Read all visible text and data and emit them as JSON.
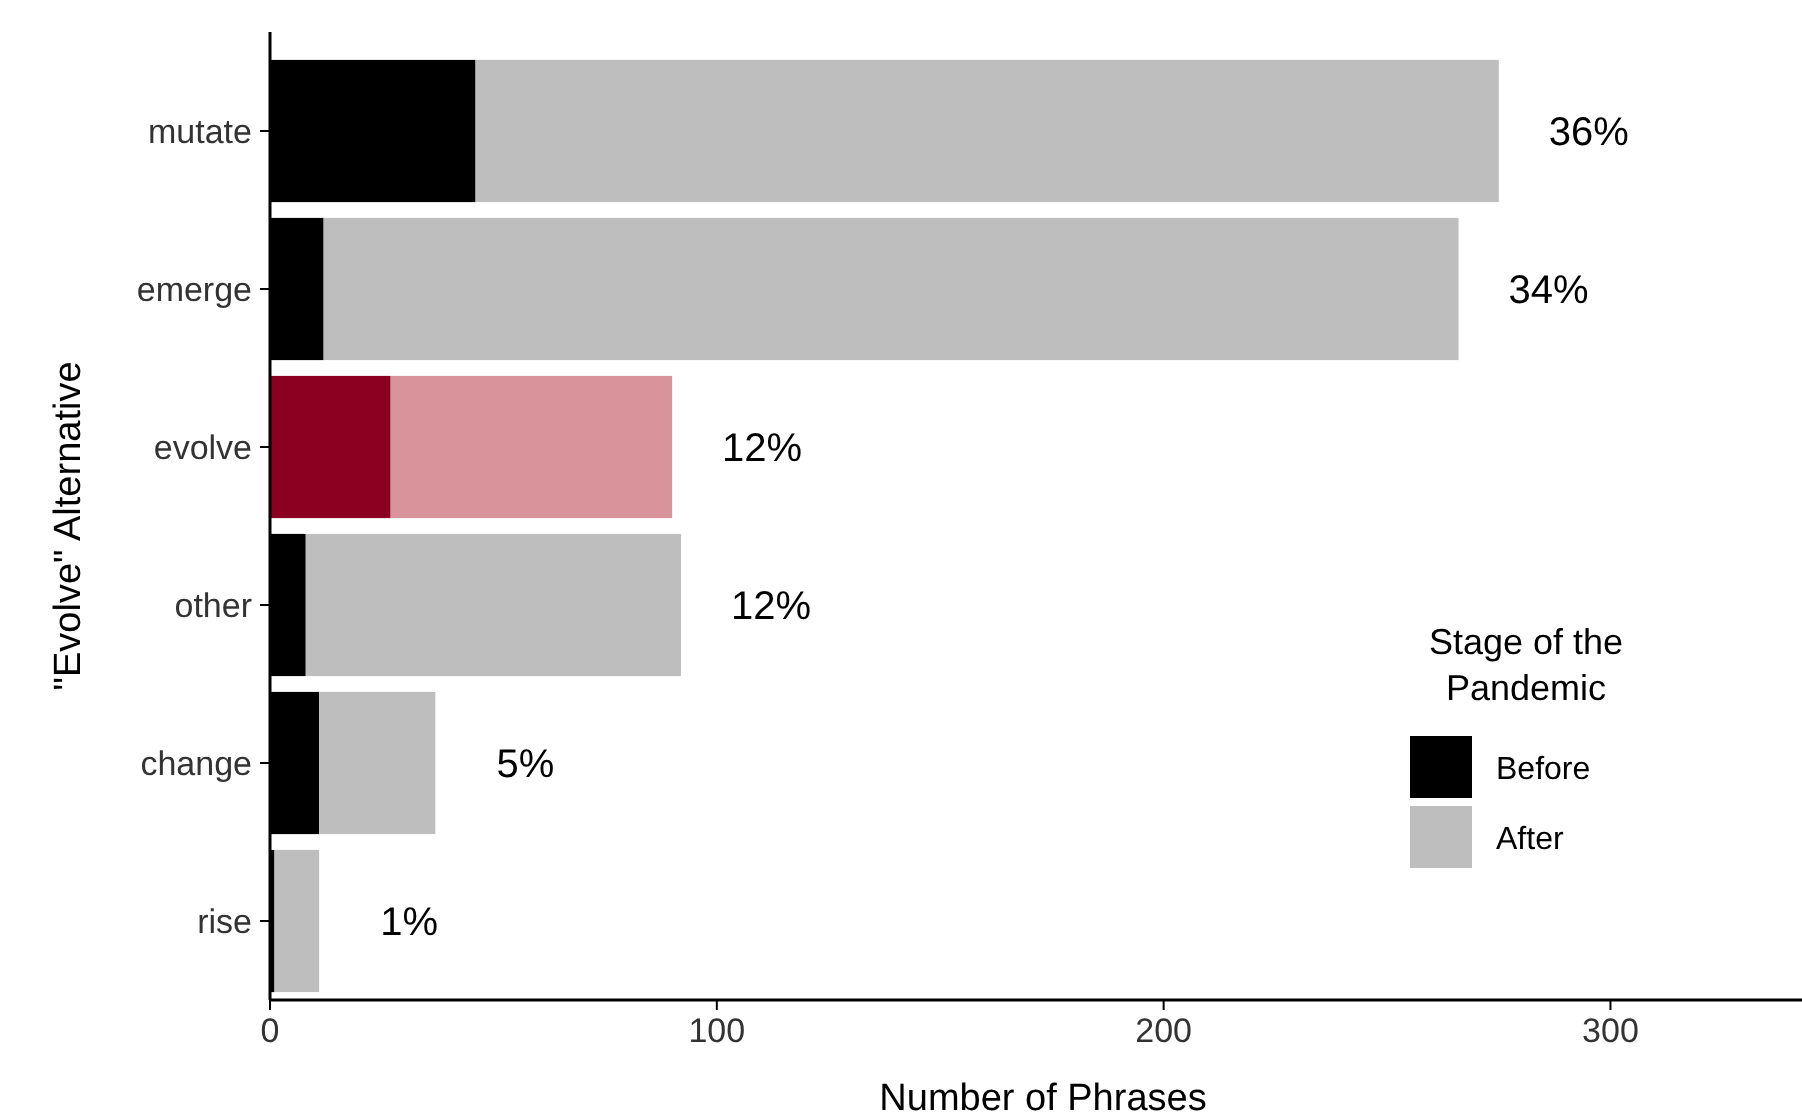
{
  "chart_data": {
    "type": "bar",
    "orientation": "horizontal",
    "stacked": true,
    "xlabel": "Number of Phrases",
    "ylabel": "\"Evolve\" Alternative",
    "legend_title": "Stage of the Pandemic",
    "categories": [
      "mutate",
      "emerge",
      "evolve",
      "other",
      "change",
      "rise"
    ],
    "series": [
      {
        "name": "Before",
        "color": "#000000",
        "colors": [
          "#000000",
          "#000000",
          "#8b0020",
          "#000000",
          "#000000",
          "#000000"
        ],
        "values": [
          46,
          12,
          27,
          8,
          11,
          1
        ]
      },
      {
        "name": "After",
        "color": "#bebebe",
        "colors": [
          "#bebebe",
          "#bebebe",
          "#d9939a",
          "#bebebe",
          "#bebebe",
          "#bebebe"
        ],
        "values": [
          229,
          254,
          63,
          84,
          26,
          10
        ]
      }
    ],
    "xlim": [
      0,
      346
    ],
    "xticks": [
      0,
      100,
      200,
      300
    ],
    "grid": false,
    "legend": "bottom right",
    "annotations": [
      "36%",
      "34%",
      "12%",
      "12%",
      "5%",
      "1%"
    ]
  }
}
